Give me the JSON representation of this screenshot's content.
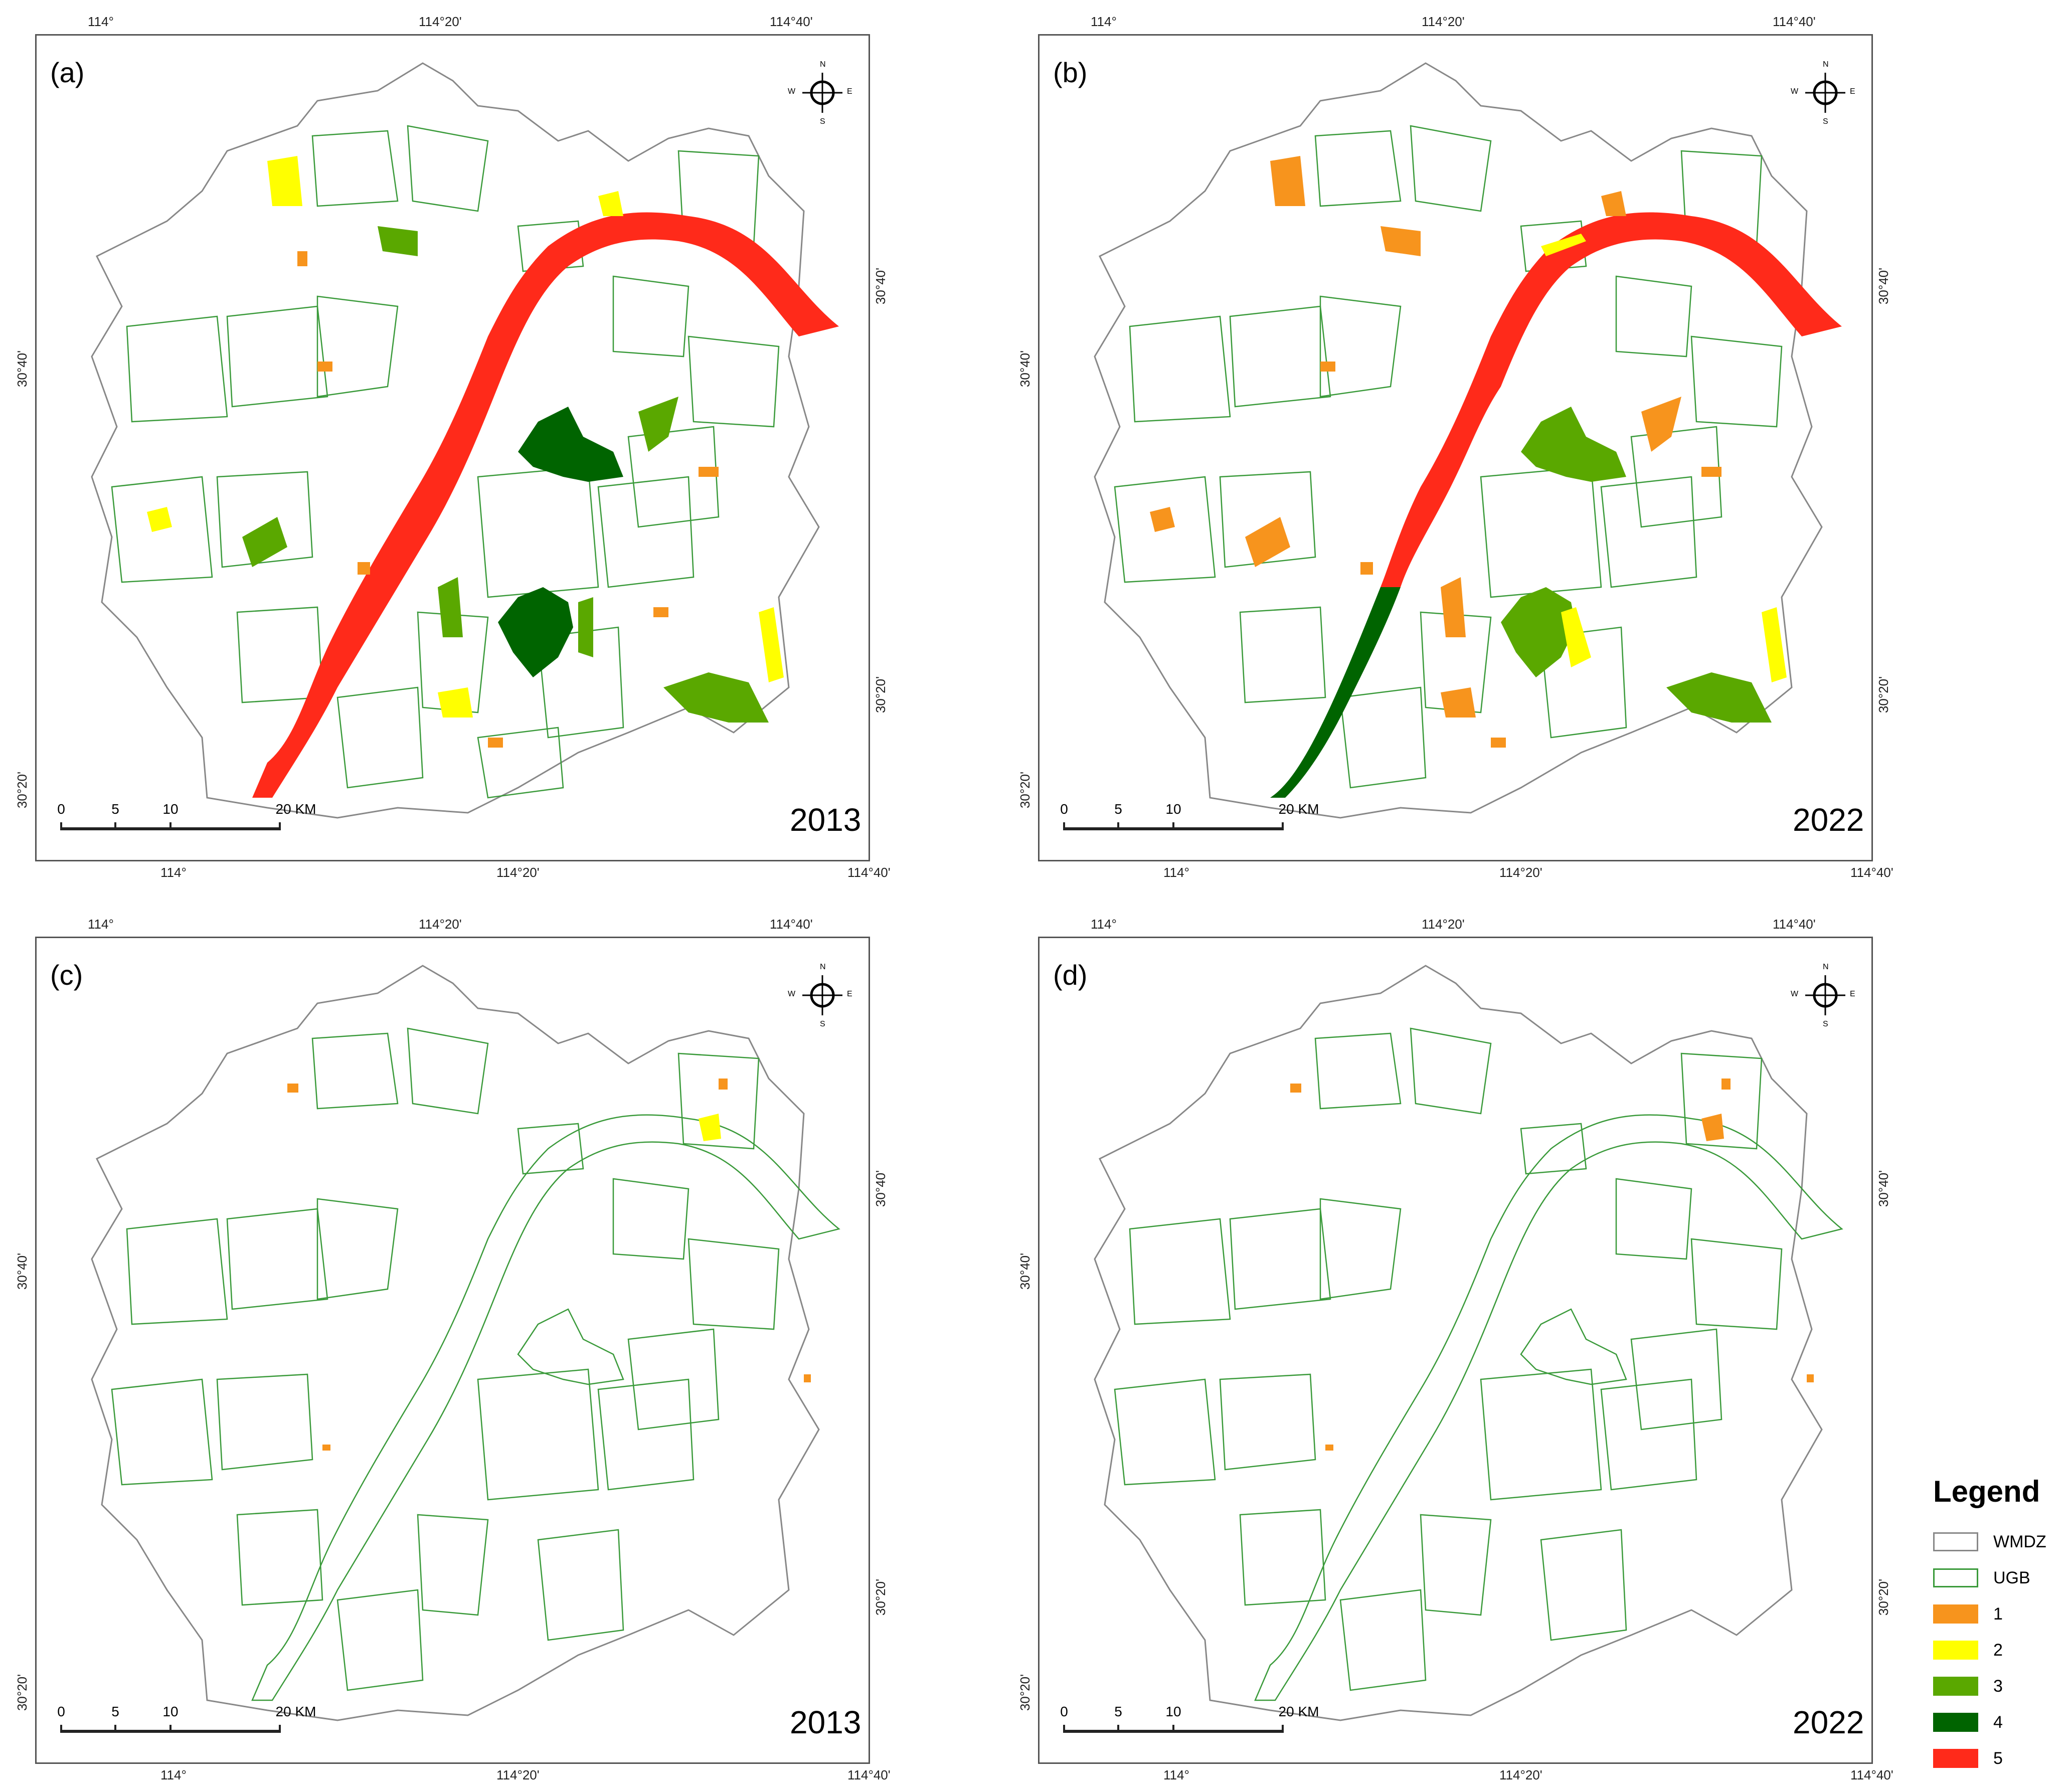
{
  "panels": [
    {
      "label": "(a)",
      "year": "2013"
    },
    {
      "label": "(b)",
      "year": "2022"
    },
    {
      "label": "(c)",
      "year": "2013"
    },
    {
      "label": "(d)",
      "year": "2022"
    }
  ],
  "coords": {
    "lon_1": "114°",
    "lon_2": "114°20'",
    "lon_3": "114°40'",
    "lat_1": "30°20'",
    "lat_2": "30°40'"
  },
  "scale": {
    "t0": "0",
    "t1": "5",
    "t2": "10",
    "t3": "20 KM"
  },
  "compass": {
    "n": "N",
    "s": "S",
    "e": "E",
    "w": "W"
  },
  "legend": {
    "title": "Legend",
    "items": [
      {
        "label": "WMDZ",
        "fill": "#ffffff",
        "stroke": "#888888"
      },
      {
        "label": "UGB",
        "fill": "#ffffff",
        "stroke": "#3a9a3a"
      },
      {
        "label": "1",
        "fill": "#f7941d",
        "stroke": "#f7941d"
      },
      {
        "label": "2",
        "fill": "#ffff00",
        "stroke": "#ffff00"
      },
      {
        "label": "3",
        "fill": "#5aa800",
        "stroke": "#5aa800"
      },
      {
        "label": "4",
        "fill": "#006400",
        "stroke": "#006400"
      },
      {
        "label": "5",
        "fill": "#ff2a1a",
        "stroke": "#ff2a1a"
      }
    ]
  },
  "colors": {
    "boundary": "#888888",
    "ugb": "#3a9a3a",
    "c1": "#f7941d",
    "c2": "#ffff00",
    "c3": "#5aa800",
    "c4": "#006400",
    "c5": "#ff2a1a"
  }
}
